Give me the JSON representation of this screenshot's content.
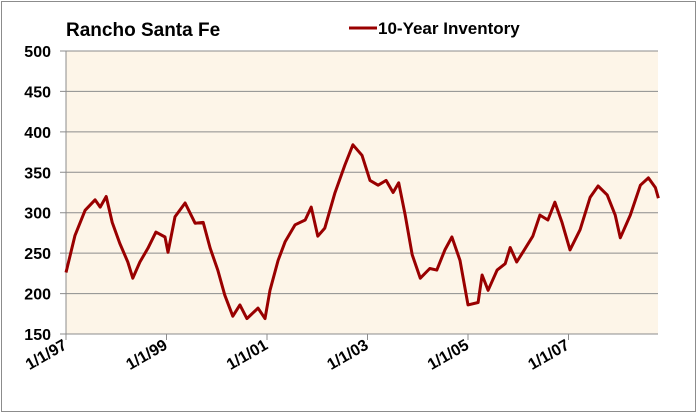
{
  "colors": {
    "line": "#990000",
    "plot_bg": "#fdf5e8",
    "grid": "#8c8c8c",
    "axis": "#8c8c8c",
    "border": "#8c8c8c"
  },
  "chart_data": {
    "type": "line",
    "title": "Rancho Santa Fe",
    "xlabel": "",
    "ylabel": "",
    "ylim": [
      150,
      500
    ],
    "yticks": [
      150,
      200,
      250,
      300,
      350,
      400,
      450,
      500
    ],
    "ytick_labels": [
      "150",
      "200",
      "250",
      "300",
      "350",
      "400",
      "450",
      "500"
    ],
    "xlim": [
      1997.0,
      2008.8
    ],
    "xticks": [
      1997,
      1999,
      2001,
      2003,
      2005,
      2007
    ],
    "xtick_labels": [
      "1/1/97",
      "1/1/99",
      "1/1/01",
      "1/1/03",
      "1/1/05",
      "1/1/07"
    ],
    "grid": true,
    "legend": {
      "position": "top-right",
      "entries": [
        "10-Year Inventory"
      ]
    },
    "series": [
      {
        "name": "10-Year Inventory",
        "x": [
          1997.0,
          1997.18,
          1997.38,
          1997.58,
          1997.68,
          1997.8,
          1997.92,
          1998.07,
          1998.23,
          1998.33,
          1998.47,
          1998.63,
          1998.79,
          1998.97,
          1999.03,
          1999.17,
          1999.37,
          1999.57,
          1999.73,
          1999.87,
          2000.02,
          2000.16,
          2000.32,
          2000.46,
          2000.6,
          2000.82,
          2000.96,
          2001.06,
          2001.22,
          2001.36,
          2001.56,
          2001.76,
          2001.88,
          2002.01,
          2002.15,
          2002.35,
          2002.55,
          2002.71,
          2002.89,
          2003.05,
          2003.21,
          2003.37,
          2003.51,
          2003.62,
          2003.75,
          2003.89,
          2004.05,
          2004.24,
          2004.38,
          2004.54,
          2004.68,
          2004.84,
          2005.0,
          2005.2,
          2005.28,
          2005.4,
          2005.58,
          2005.74,
          2005.84,
          2005.97,
          2006.09,
          2006.29,
          2006.43,
          2006.59,
          2006.73,
          2006.87,
          2007.03,
          2007.23,
          2007.43,
          2007.59,
          2007.77,
          2007.93,
          2008.03,
          2008.23,
          2008.43,
          2008.59,
          2008.73,
          2008.79
        ],
        "values": [
          226,
          272,
          303,
          316,
          307,
          320,
          288,
          262,
          239,
          219,
          239,
          256,
          276,
          270,
          251,
          295,
          312,
          287,
          288,
          256,
          229,
          198,
          172,
          186,
          169,
          182,
          169,
          204,
          241,
          264,
          285,
          291,
          307,
          271,
          281,
          324,
          359,
          384,
          371,
          340,
          334,
          340,
          325,
          337,
          297,
          248,
          219,
          231,
          229,
          254,
          270,
          241,
          186,
          189,
          223,
          204,
          229,
          237,
          257,
          239,
          251,
          271,
          297,
          291,
          313,
          288,
          254,
          279,
          319,
          333,
          322,
          297,
          269,
          297,
          334,
          343,
          331,
          318
        ]
      }
    ]
  }
}
